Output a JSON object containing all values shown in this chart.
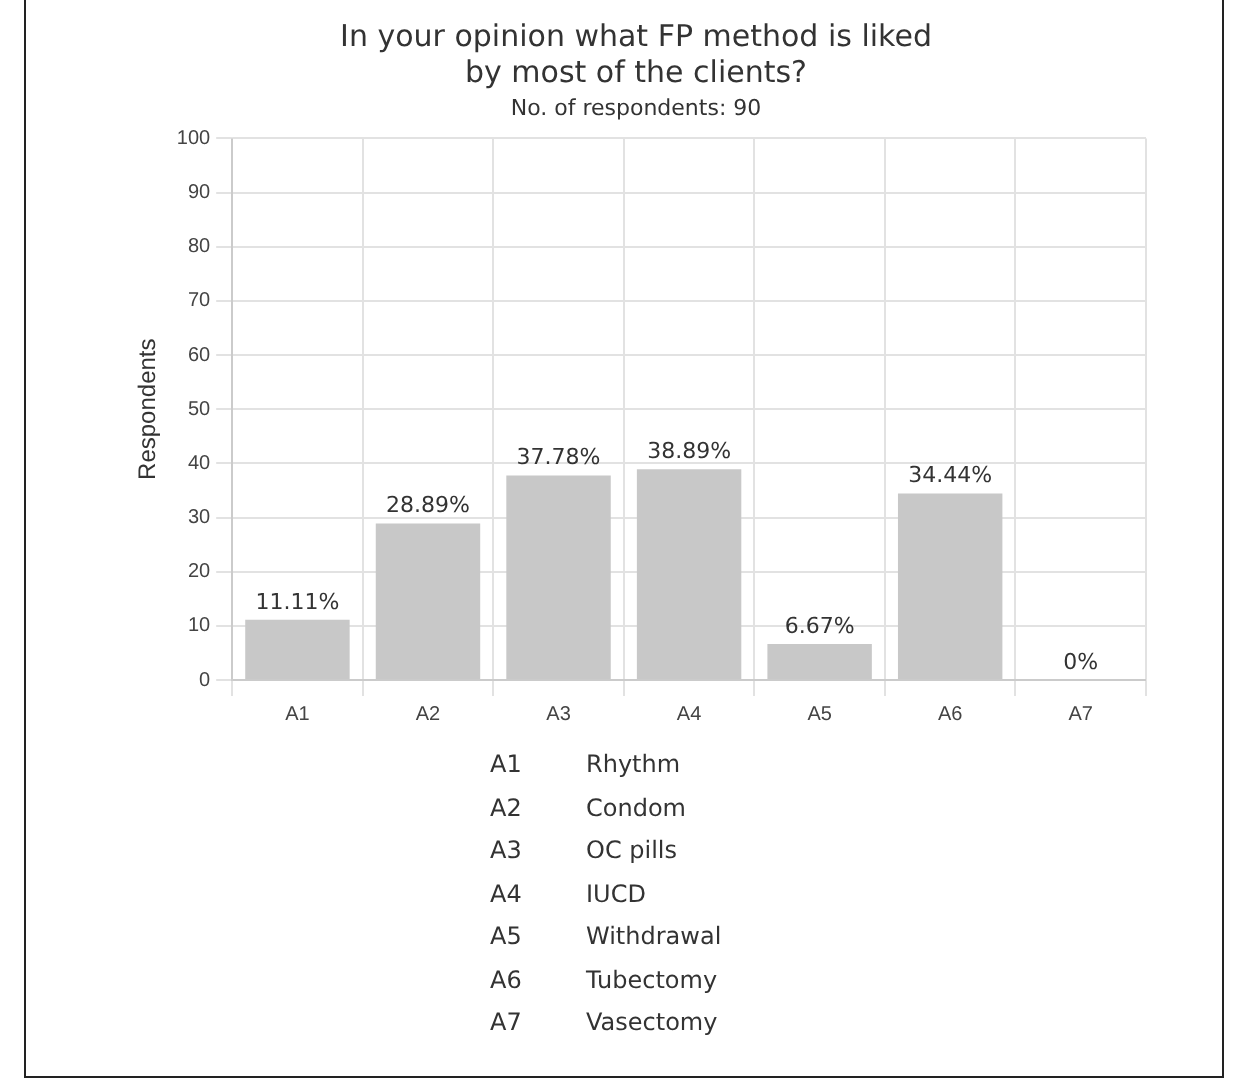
{
  "chart_data": {
    "type": "bar",
    "title": "In your opinion what FP method is liked\nby most of the clients?",
    "subtitle": "No. of respondents: 90",
    "ylabel": "Respondents",
    "categories": [
      "A1",
      "A2",
      "A3",
      "A4",
      "A5",
      "A6",
      "A7"
    ],
    "values": [
      11.11,
      28.89,
      37.78,
      38.89,
      6.67,
      34.44,
      0
    ],
    "value_labels": [
      "11.11%",
      "28.89%",
      "37.78%",
      "38.89%",
      "6.67%",
      "34.44%",
      "0%"
    ],
    "color": "#c8c8c8",
    "ylim": [
      0,
      100
    ],
    "yticks": [
      0,
      10,
      20,
      30,
      40,
      50,
      60,
      70,
      80,
      90,
      100
    ],
    "grid": true,
    "legend": false,
    "annotations": [
      "A1 Rhythm",
      "A2 Condom",
      "A3 OC pills",
      "A4 IUCD",
      "A5 Withdrawal",
      "A6 Tubectomy",
      "A7 Vasectomy"
    ]
  }
}
